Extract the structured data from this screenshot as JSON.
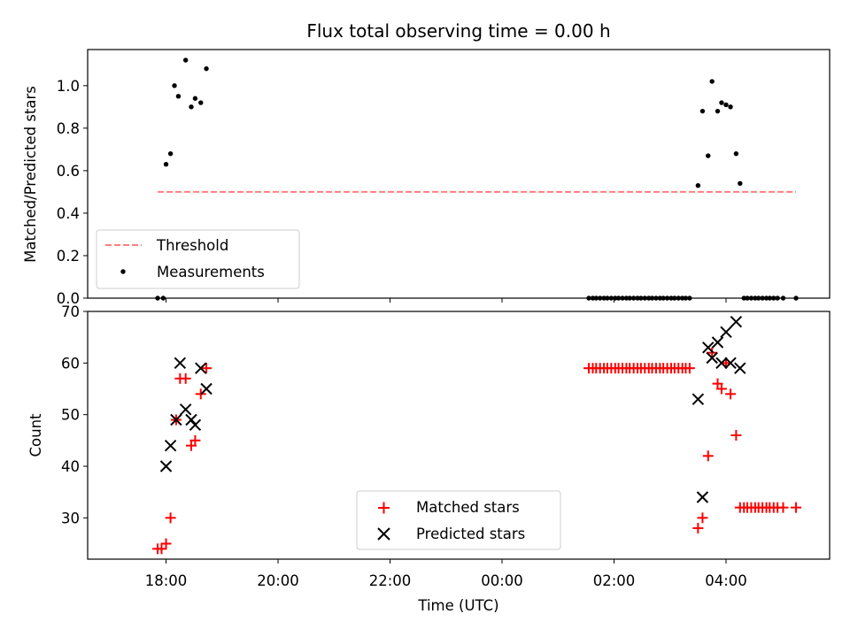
{
  "chart_data": [
    {
      "type": "scatter",
      "title": "Flux total observing time = 0.00 h",
      "xlabel": "",
      "ylabel": "Matched/Predicted stars",
      "xlim_hours": [
        -7.4,
        5.85
      ],
      "ylim": [
        0,
        1.17
      ],
      "yticks": [
        0.0,
        0.2,
        0.4,
        0.6,
        0.8,
        1.0
      ],
      "yticklabels": [
        "0.0",
        "0.2",
        "0.4",
        "0.6",
        "0.8",
        "1.0"
      ],
      "threshold": {
        "name": "Threshold",
        "value": 0.5,
        "x": [
          -6.15,
          5.25
        ],
        "color": "#ff7f7f"
      },
      "measurements": {
        "name": "Measurements",
        "color": "#000000",
        "x": [
          -6.15,
          -6.05,
          -6.0,
          -5.92,
          -5.85,
          -5.78,
          -5.65,
          -5.55,
          -5.48,
          -5.38,
          -5.28,
          1.55,
          1.62,
          1.68,
          1.75,
          1.82,
          1.88,
          1.95,
          2.02,
          2.08,
          2.15,
          2.22,
          2.28,
          2.35,
          2.42,
          2.48,
          2.55,
          2.62,
          2.68,
          2.75,
          2.82,
          2.88,
          2.95,
          3.02,
          3.08,
          3.15,
          3.22,
          3.28,
          3.35,
          3.5,
          3.58,
          3.68,
          3.75,
          3.85,
          3.92,
          4.0,
          4.08,
          4.18,
          4.25,
          4.32,
          4.38,
          4.45,
          4.52,
          4.58,
          4.65,
          4.72,
          4.78,
          4.85,
          4.92,
          5.02,
          5.25
        ],
        "y": [
          0.0,
          0.0,
          0.63,
          0.68,
          1.0,
          0.95,
          1.12,
          0.9,
          0.94,
          0.92,
          1.08,
          0,
          0,
          0,
          0,
          0,
          0,
          0,
          0,
          0,
          0,
          0,
          0,
          0,
          0,
          0,
          0,
          0,
          0,
          0,
          0,
          0,
          0,
          0,
          0,
          0,
          0,
          0,
          0,
          0.53,
          0.88,
          0.67,
          1.02,
          0.88,
          0.92,
          0.91,
          0.9,
          0.68,
          0.54,
          0,
          0,
          0,
          0,
          0,
          0,
          0,
          0,
          0,
          0,
          0,
          0
        ]
      },
      "legend": [
        "Threshold",
        "Measurements"
      ],
      "legend_position": "lower-left"
    },
    {
      "type": "scatter",
      "xlabel": "Time (UTC)",
      "ylabel": "Count",
      "xlim_hours": [
        -7.4,
        5.85
      ],
      "ylim": [
        22,
        70
      ],
      "yticks": [
        30,
        40,
        50,
        60,
        70
      ],
      "yticklabels": [
        "30",
        "40",
        "50",
        "60",
        "70"
      ],
      "xticks": [
        -6,
        -4,
        -2,
        0,
        2,
        4
      ],
      "xticklabels": [
        "18:00",
        "20:00",
        "22:00",
        "00:00",
        "02:00",
        "04:00"
      ],
      "series": [
        {
          "name": "Matched stars",
          "marker": "+",
          "color": "#ff0000",
          "x": [
            -6.15,
            -6.08,
            -6.0,
            -5.92,
            -5.82,
            -5.75,
            -5.65,
            -5.55,
            -5.48,
            -5.38,
            -5.28,
            1.55,
            1.62,
            1.68,
            1.75,
            1.82,
            1.88,
            1.95,
            2.02,
            2.08,
            2.15,
            2.22,
            2.28,
            2.35,
            2.42,
            2.48,
            2.55,
            2.62,
            2.68,
            2.75,
            2.82,
            2.88,
            2.95,
            3.02,
            3.08,
            3.15,
            3.22,
            3.28,
            3.35,
            3.5,
            3.58,
            3.68,
            3.75,
            3.85,
            3.92,
            4.0,
            4.08,
            4.18,
            4.25,
            4.32,
            4.38,
            4.45,
            4.52,
            4.58,
            4.65,
            4.72,
            4.78,
            4.85,
            4.92,
            5.02,
            5.25
          ],
          "y": [
            24,
            24,
            25,
            30,
            49,
            57,
            57,
            44,
            45,
            54,
            59,
            59,
            59,
            59,
            59,
            59,
            59,
            59,
            59,
            59,
            59,
            59,
            59,
            59,
            59,
            59,
            59,
            59,
            59,
            59,
            59,
            59,
            59,
            59,
            59,
            59,
            59,
            59,
            59,
            28,
            30,
            42,
            62,
            56,
            55,
            60,
            54,
            46,
            32,
            32,
            32,
            32,
            32,
            32,
            32,
            32,
            32,
            32,
            32,
            32,
            32
          ]
        },
        {
          "name": "Predicted stars",
          "marker": "x",
          "color": "#000000",
          "x": [
            -6.0,
            -5.92,
            -5.82,
            -5.75,
            -5.65,
            -5.55,
            -5.48,
            -5.38,
            -5.28,
            3.5,
            3.58,
            3.68,
            3.75,
            3.85,
            3.92,
            4.0,
            4.08,
            4.18,
            4.25
          ],
          "y": [
            40,
            44,
            49,
            60,
            51,
            49,
            48,
            59,
            55,
            53,
            34,
            63,
            61,
            64,
            60,
            66,
            60,
            68,
            59
          ]
        }
      ],
      "legend": [
        "Matched stars",
        "Predicted stars"
      ],
      "legend_position": "lower-center"
    }
  ]
}
